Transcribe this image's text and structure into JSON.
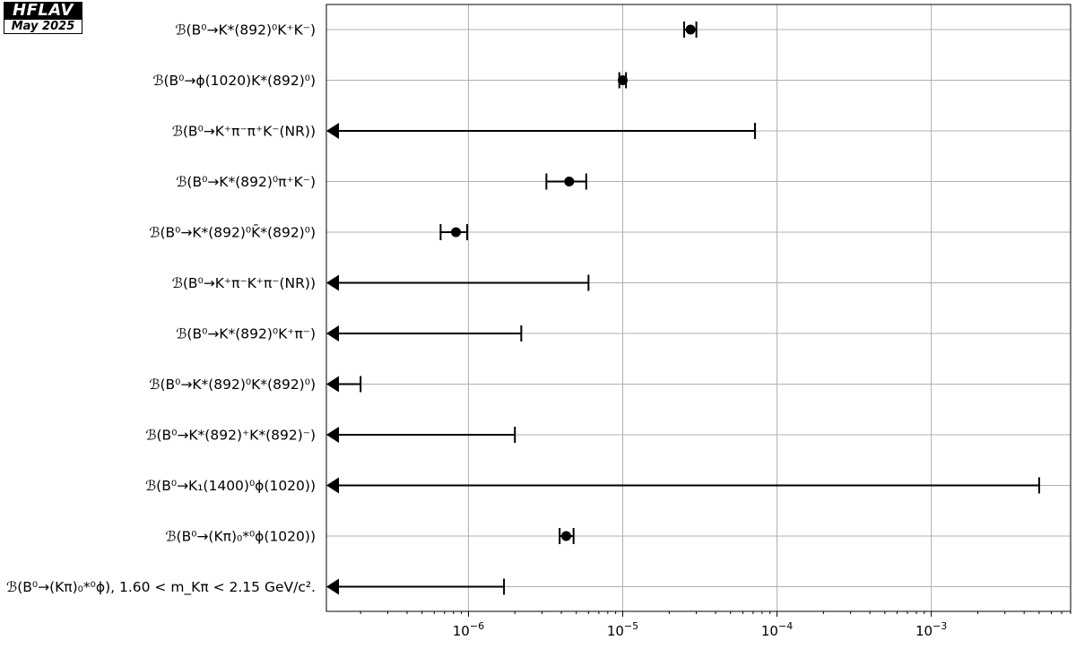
{
  "logo": {
    "title": "HFLAV",
    "date": "May 2025"
  },
  "chart_data": {
    "type": "scatter",
    "orientation": "horizontal",
    "xscale": "log",
    "xlim": [
      1.2e-07,
      0.008
    ],
    "xticks": [
      {
        "value": 1e-06,
        "label": "10",
        "exp": "−6"
      },
      {
        "value": 1e-05,
        "label": "10",
        "exp": "−5"
      },
      {
        "value": 0.0001,
        "label": "10",
        "exp": "−4"
      },
      {
        "value": 0.001,
        "label": "10",
        "exp": "−3"
      }
    ],
    "grid": true,
    "rows": [
      {
        "label": "ℬ(B⁰→K*(892)⁰K⁺K⁻)",
        "kind": "measurement",
        "value": 2.75e-05,
        "low": 2.5e-05,
        "high": 3e-05
      },
      {
        "label": "ℬ(B⁰→ϕ(1020)K*(892)⁰)",
        "kind": "measurement",
        "value": 1e-05,
        "low": 9.5e-06,
        "high": 1.05e-05
      },
      {
        "label": "ℬ(B⁰→K⁺π⁻π⁺K⁻(NR))",
        "kind": "upper_limit",
        "value": 7.2e-05
      },
      {
        "label": "ℬ(B⁰→K*(892)⁰π⁺K⁻)",
        "kind": "measurement",
        "value": 4.5e-06,
        "low": 3.2e-06,
        "high": 5.8e-06
      },
      {
        "label": "ℬ(B⁰→K*(892)⁰K̄*(892)⁰)",
        "kind": "measurement",
        "value": 8.3e-07,
        "low": 6.6e-07,
        "high": 9.8e-07
      },
      {
        "label": "ℬ(B⁰→K⁺π⁻K⁺π⁻(NR))",
        "kind": "upper_limit",
        "value": 6e-06
      },
      {
        "label": "ℬ(B⁰→K*(892)⁰K⁺π⁻)",
        "kind": "upper_limit",
        "value": 2.2e-06
      },
      {
        "label": "ℬ(B⁰→K*(892)⁰K*(892)⁰)",
        "kind": "upper_limit",
        "value": 2e-07
      },
      {
        "label": "ℬ(B⁰→K*(892)⁺K*(892)⁻)",
        "kind": "upper_limit",
        "value": 2e-06
      },
      {
        "label": "ℬ(B⁰→K₁(1400)⁰ϕ(1020))",
        "kind": "upper_limit",
        "value": 0.005
      },
      {
        "label": "ℬ(B⁰→(Kπ)₀*⁰ϕ(1020))",
        "kind": "measurement",
        "value": 4.3e-06,
        "low": 3.9e-06,
        "high": 4.8e-06
      },
      {
        "label": "ℬ(B⁰→(Kπ)₀*⁰ϕ), 1.60 < m_Kπ < 2.15 GeV/c².",
        "kind": "upper_limit",
        "value": 1.7e-06
      }
    ]
  }
}
